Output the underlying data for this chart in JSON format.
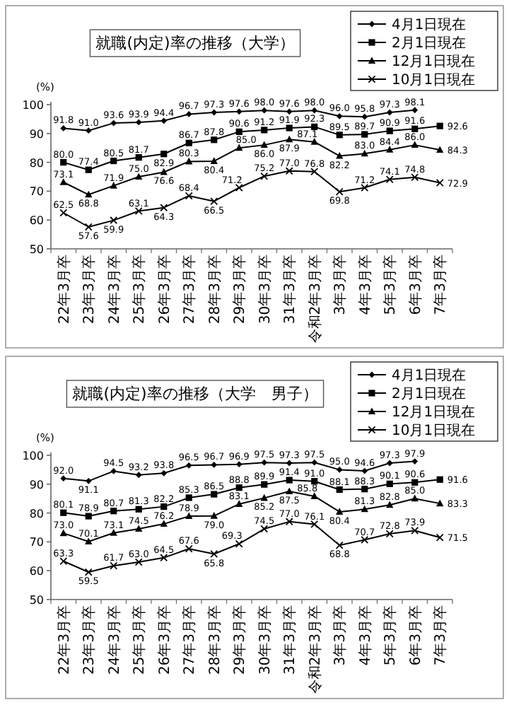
{
  "chart_data": [
    {
      "type": "line",
      "title": "就職(内定)率の推移（大学）",
      "ylabel": "(%)",
      "legend": "top right",
      "ylim": [
        50,
        100
      ],
      "yticks": [
        50,
        60,
        70,
        80,
        90,
        100
      ],
      "categories": [
        "22年3月卒",
        "23年3月卒",
        "24年3月卒",
        "25年3月卒",
        "26年3月卒",
        "27年3月卒",
        "28年3月卒",
        "29年3月卒",
        "30年3月卒",
        "31年3月卒",
        "令和2年3月卒",
        "3年3月卒",
        "4年3月卒",
        "5年3月卒",
        "6年3月卒",
        "7年3月卒"
      ],
      "series": [
        {
          "name": "4月1日現在",
          "color": "#000000",
          "marker": "diamond",
          "values": [
            91.8,
            91.0,
            93.6,
            93.9,
            94.4,
            96.7,
            97.3,
            97.6,
            98.0,
            97.6,
            98.0,
            96.0,
            95.8,
            97.3,
            98.1,
            null
          ],
          "value_labels": [
            "91.8",
            "91.0",
            "93.6",
            "93.9",
            "94.4",
            "96.7",
            "97.3",
            "97.6",
            "98.0",
            "97.6",
            "98.0",
            "96.0",
            "95.8",
            "97.3",
            "98.1",
            null
          ]
        },
        {
          "name": "2月1日現在",
          "color": "#000000",
          "marker": "square",
          "values": [
            80.0,
            77.4,
            80.5,
            81.7,
            82.9,
            86.7,
            87.8,
            90.6,
            91.2,
            91.9,
            92.3,
            89.5,
            89.7,
            90.9,
            91.6,
            92.6
          ],
          "value_labels": [
            "80.0",
            "77.4",
            "80.5",
            "81.7",
            "82.9",
            "86.7",
            "87.8",
            "90.6",
            "91.2",
            "91.9",
            "92.3",
            "89.5",
            "89.7",
            "90.9",
            "91.6",
            "92.6"
          ]
        },
        {
          "name": "12月1日現在",
          "color": "#000000",
          "marker": "triangle",
          "values": [
            73.1,
            68.8,
            71.9,
            75.0,
            76.6,
            80.3,
            80.4,
            85.0,
            86.0,
            87.9,
            87.1,
            82.2,
            83.0,
            84.4,
            86.0,
            84.3
          ],
          "value_labels": [
            "73.1",
            "68.8",
            "71.9",
            "75.0",
            "76.6",
            "80.3",
            "80.4",
            "85.0",
            "86.0",
            "87.9",
            "87.1",
            "82.2",
            "83.0",
            "84.4",
            "86.0",
            "84.3"
          ]
        },
        {
          "name": "10月1日現在",
          "color": "#000000",
          "marker": "cross",
          "values": [
            62.5,
            57.6,
            59.9,
            63.1,
            64.3,
            68.4,
            66.5,
            71.2,
            75.2,
            77.0,
            76.8,
            69.8,
            71.2,
            74.1,
            74.8,
            72.9
          ],
          "value_labels": [
            "62.5",
            "57.6",
            "59.9",
            "63.1",
            "64.3",
            "68.4",
            "66.5",
            "71.2",
            "75.2",
            "77.0",
            "76.8",
            "69.8",
            "71.2",
            "74.1",
            "74.8",
            "72.9"
          ]
        }
      ]
    },
    {
      "type": "line",
      "title": "就職(内定)率の推移（大学　男子）",
      "ylabel": "(%)",
      "legend": "top right",
      "ylim": [
        50,
        100
      ],
      "yticks": [
        50,
        60,
        70,
        80,
        90,
        100
      ],
      "categories": [
        "22年3月卒",
        "23年3月卒",
        "24年3月卒",
        "25年3月卒",
        "26年3月卒",
        "27年3月卒",
        "28年3月卒",
        "29年3月卒",
        "30年3月卒",
        "31年3月卒",
        "令和2年3月卒",
        "3年3月卒",
        "4年3月卒",
        "5年3月卒",
        "6年3月卒",
        "7年3月卒"
      ],
      "series": [
        {
          "name": "4月1日現在",
          "color": "#000000",
          "marker": "diamond",
          "values": [
            92.0,
            91.1,
            94.5,
            93.2,
            93.8,
            96.5,
            96.7,
            96.9,
            97.5,
            97.3,
            97.5,
            95.0,
            94.6,
            97.3,
            97.9,
            null
          ],
          "value_labels": [
            "92.0",
            "91.1",
            "94.5",
            "93.2",
            "93.8",
            "96.5",
            "96.7",
            "96.9",
            "97.5",
            "97.3",
            "97.5",
            "95.0",
            "94.6",
            "97.3",
            "97.9",
            null
          ]
        },
        {
          "name": "2月1日現在",
          "color": "#000000",
          "marker": "square",
          "values": [
            80.1,
            78.9,
            80.7,
            81.3,
            82.2,
            85.3,
            86.5,
            88.8,
            89.9,
            91.4,
            91.0,
            88.1,
            88.3,
            90.1,
            90.6,
            91.6
          ],
          "value_labels": [
            "80.1",
            "78.9",
            "80.7",
            "81.3",
            "82.2",
            "85.3",
            "86.5",
            "88.8",
            "89.9",
            "91.4",
            "91.0",
            "88.1",
            "88.3",
            "90.1",
            "90.6",
            "91.6"
          ]
        },
        {
          "name": "12月1日現在",
          "color": "#000000",
          "marker": "triangle",
          "values": [
            73.0,
            70.1,
            73.1,
            74.5,
            76.2,
            78.9,
            79.0,
            83.1,
            85.2,
            87.5,
            85.8,
            80.4,
            81.3,
            82.8,
            85.0,
            83.3
          ],
          "value_labels": [
            "73.0",
            "70.1",
            "73.1",
            "74.5",
            "76.2",
            "78.9",
            "79.0",
            "83.1",
            "85.2",
            "87.5",
            "85.8",
            "80.4",
            "81.3",
            "82.8",
            "85.0",
            "83.3"
          ]
        },
        {
          "name": "10月1日現在",
          "color": "#000000",
          "marker": "cross",
          "values": [
            63.3,
            59.5,
            61.7,
            63.0,
            64.5,
            67.6,
            65.8,
            69.3,
            74.5,
            77.0,
            76.1,
            68.8,
            70.7,
            72.8,
            73.9,
            71.5
          ],
          "value_labels": [
            "63.3",
            "59.5",
            "61.7",
            "63.0",
            "64.5",
            "67.6",
            "65.8",
            "69.3",
            "74.5",
            "77.0",
            "76.1",
            "68.8",
            "70.7",
            "72.8",
            "73.9",
            "71.5"
          ]
        }
      ]
    }
  ]
}
